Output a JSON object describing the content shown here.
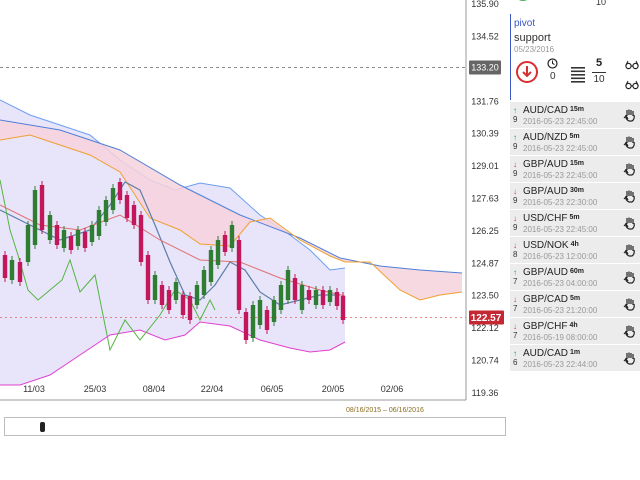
{
  "chart": {
    "price_ticks": [
      "135.90",
      "134.52",
      "133.20",
      "131.76",
      "130.39",
      "129.01",
      "127.63",
      "126.25",
      "124.87",
      "123.50",
      "122.12",
      "120.74",
      "119.36"
    ],
    "price_values": [
      135.9,
      134.52,
      133.2,
      131.76,
      130.39,
      129.01,
      127.63,
      126.25,
      124.87,
      123.5,
      122.12,
      120.74,
      119.36
    ],
    "current_price": "122.57",
    "current_value": 122.57,
    "dashed_level": 133.2,
    "date_ticks": [
      "11/03",
      "25/03",
      "08/04",
      "22/04",
      "06/05",
      "20/05",
      "02/06"
    ],
    "range_label": "08/16/2015 – 06/16/2016",
    "colors": {
      "current_badge": "#c62833",
      "bull_candle": "#2e7d32",
      "bear_candle": "#c2185b",
      "kumo_top": "#4f7fd8",
      "band_upper": "#6a9ff0",
      "band_lower": "#e040d0",
      "tenkan": "#5b7ea6",
      "chikou": "#52b640",
      "kijun_orange": "#f0a030"
    }
  },
  "pivot": {
    "title": "pivot",
    "type": "support",
    "date": "05/23/2016",
    "clock_value": "0",
    "score_num": "5",
    "score_den": "10",
    "direction_icon": "down-arrow-icon",
    "partial_top_den": "10"
  },
  "signals": [
    {
      "pair": "AUD/CAD",
      "tf": "15m",
      "time": "2016-05-23 22:45:00",
      "dir": "up",
      "num": "9"
    },
    {
      "pair": "AUD/NZD",
      "tf": "5m",
      "time": "2016-05-23 22:45:00",
      "dir": "up",
      "num": "9"
    },
    {
      "pair": "GBP/AUD",
      "tf": "15m",
      "time": "2016-05-23 22:45:00",
      "dir": "down",
      "num": "9"
    },
    {
      "pair": "GBP/AUD",
      "tf": "30m",
      "time": "2016-05-23 22:30:00",
      "dir": "down",
      "num": "9"
    },
    {
      "pair": "USD/CHF",
      "tf": "5m",
      "time": "2016-05-23 22:45:00",
      "dir": "down",
      "num": "9"
    },
    {
      "pair": "USD/NOK",
      "tf": "4h",
      "time": "2016-05-23 12:00:00",
      "dir": "down",
      "num": "8"
    },
    {
      "pair": "GBP/AUD",
      "tf": "60m",
      "time": "2016-05-23 04:00:00",
      "dir": "up",
      "num": "7"
    },
    {
      "pair": "GBP/CAD",
      "tf": "5m",
      "time": "2016-05-23 21:20:00",
      "dir": "down",
      "num": "7"
    },
    {
      "pair": "GBP/CHF",
      "tf": "4h",
      "time": "2016-05-19 08:00:00",
      "dir": "down",
      "num": "7"
    },
    {
      "pair": "AUD/CAD",
      "tf": "1m",
      "time": "2016-05-23 22:44:00",
      "dir": "up",
      "num": "6"
    }
  ]
}
